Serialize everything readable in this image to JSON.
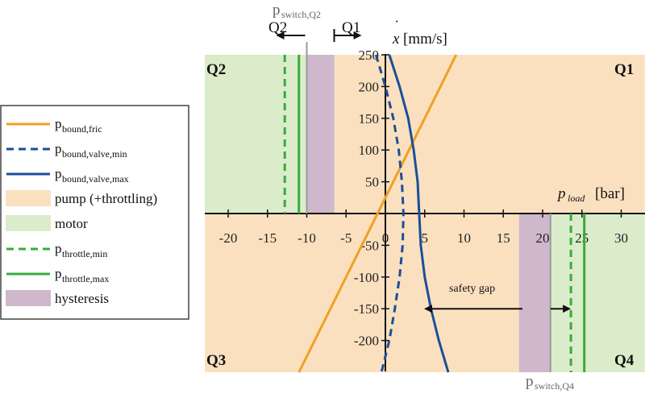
{
  "chart_data": {
    "type": "line",
    "xlabel": "p_load [bar]",
    "xlabel_main": "p",
    "xlabel_sub": "load",
    "xlabel_unit": " [bar]",
    "ylabel": "x-dot [mm/s]",
    "ylabel_main": "x",
    "ylabel_unit": " [mm/s]",
    "xlim": [
      -23,
      33
    ],
    "ylim": [
      -250,
      250
    ],
    "x_ticks": [
      -20,
      -15,
      -10,
      -5,
      0,
      5,
      10,
      15,
      20,
      25,
      30
    ],
    "x_tick_labels": [
      "-20",
      "-15",
      "-10",
      "-5",
      "0",
      "5",
      "10",
      "15",
      "20",
      "25",
      "30"
    ],
    "y_ticks": [
      -200,
      -150,
      -100,
      -50,
      0,
      50,
      100,
      150,
      200,
      250
    ],
    "y_tick_labels": [
      "-200",
      "-150",
      "-100",
      "-50",
      "",
      "50",
      "100",
      "150",
      "200",
      "250"
    ],
    "quadrants": [
      "Q1",
      "Q2",
      "Q3",
      "Q4"
    ],
    "regions": [
      {
        "name": "motor",
        "x": [
          -23,
          -6.5
        ],
        "y": [
          0,
          250
        ],
        "color": "#dbeccb"
      },
      {
        "name": "pump",
        "x": [
          -6.5,
          33
        ],
        "y": [
          0,
          250
        ],
        "color": "#fbe0c0"
      },
      {
        "name": "pump",
        "x": [
          -23,
          17
        ],
        "y": [
          -250,
          0
        ],
        "color": "#fbe0c0"
      },
      {
        "name": "motor",
        "x": [
          21,
          33
        ],
        "y": [
          -250,
          0
        ],
        "color": "#dbeccb"
      },
      {
        "name": "hysteresis",
        "x": [
          -10,
          -6.5
        ],
        "y": [
          0,
          250
        ],
        "color": "#cfb8cb"
      },
      {
        "name": "hysteresis",
        "x": [
          17,
          21
        ],
        "y": [
          -250,
          0
        ],
        "color": "#cfb8cb"
      }
    ],
    "series": [
      {
        "name": "p_bound,fric",
        "color": "#f0a020",
        "style": "solid",
        "x": [
          -11,
          9
        ],
        "y": [
          -250,
          250
        ]
      },
      {
        "name": "p_bound,valve,min",
        "color": "#1a4f96",
        "style": "dashed",
        "x": [
          -1.2,
          0.0,
          1.0,
          1.7,
          2.1,
          2.3,
          2.2,
          1.8,
          1.2,
          0.5,
          -0.5
        ],
        "y": [
          250,
          200,
          150,
          100,
          50,
          0,
          -50,
          -100,
          -150,
          -200,
          -250
        ]
      },
      {
        "name": "p_bound,valve,max",
        "color": "#1a4f96",
        "style": "solid",
        "x": [
          0.5,
          1.8,
          2.9,
          3.6,
          4.1,
          4.3,
          4.5,
          5.0,
          5.8,
          6.8,
          8.0
        ],
        "y": [
          250,
          200,
          150,
          100,
          50,
          0,
          -50,
          -100,
          -150,
          -200,
          -250
        ]
      },
      {
        "name": "p_throttle,min",
        "color": "#3aaa3a",
        "style": "dashed",
        "vertical": [
          {
            "x": -12.8,
            "y": [
              0,
              250
            ]
          },
          {
            "x": 23.6,
            "y": [
              -250,
              0
            ]
          }
        ]
      },
      {
        "name": "p_throttle,max",
        "color": "#3aaa3a",
        "style": "solid",
        "vertical": [
          {
            "x": -11,
            "y": [
              0,
              250
            ]
          },
          {
            "x": 25.3,
            "y": [
              -250,
              0
            ]
          }
        ]
      }
    ],
    "switch_lines": [
      {
        "label_main": "p",
        "label_sub": "switch,Q2",
        "x": -10,
        "y": [
          0,
          270
        ]
      },
      {
        "label_main": "p",
        "label_sub": "switch,Q4",
        "x": 21,
        "y": [
          -250,
          0
        ]
      }
    ],
    "annotations": {
      "q2_arrow": "Q2",
      "q1_arrow": "Q1",
      "safety_gap": "safety gap"
    },
    "legend": {
      "placement": "left",
      "items": [
        {
          "main": "p",
          "sub": "bound,fric",
          "kind": "line",
          "color": "#f0a020",
          "style": "solid"
        },
        {
          "main": "p",
          "sub": "bound,valve,min",
          "kind": "line",
          "color": "#1a4f96",
          "style": "dashed"
        },
        {
          "main": "p",
          "sub": "bound,valve,max",
          "kind": "line",
          "color": "#1a4f96",
          "style": "solid"
        },
        {
          "main": "pump (+throttling)",
          "sub": "",
          "kind": "patch",
          "color": "#fbe0c0"
        },
        {
          "main": "motor",
          "sub": "",
          "kind": "patch",
          "color": "#dbeccb"
        },
        {
          "main": "p",
          "sub": "throttle,min",
          "kind": "line",
          "color": "#3aaa3a",
          "style": "dashed"
        },
        {
          "main": "p",
          "sub": "throttle,max",
          "kind": "line",
          "color": "#3aaa3a",
          "style": "solid"
        },
        {
          "main": "hysteresis",
          "sub": "",
          "kind": "patch",
          "color": "#cfb8cb"
        }
      ]
    }
  }
}
